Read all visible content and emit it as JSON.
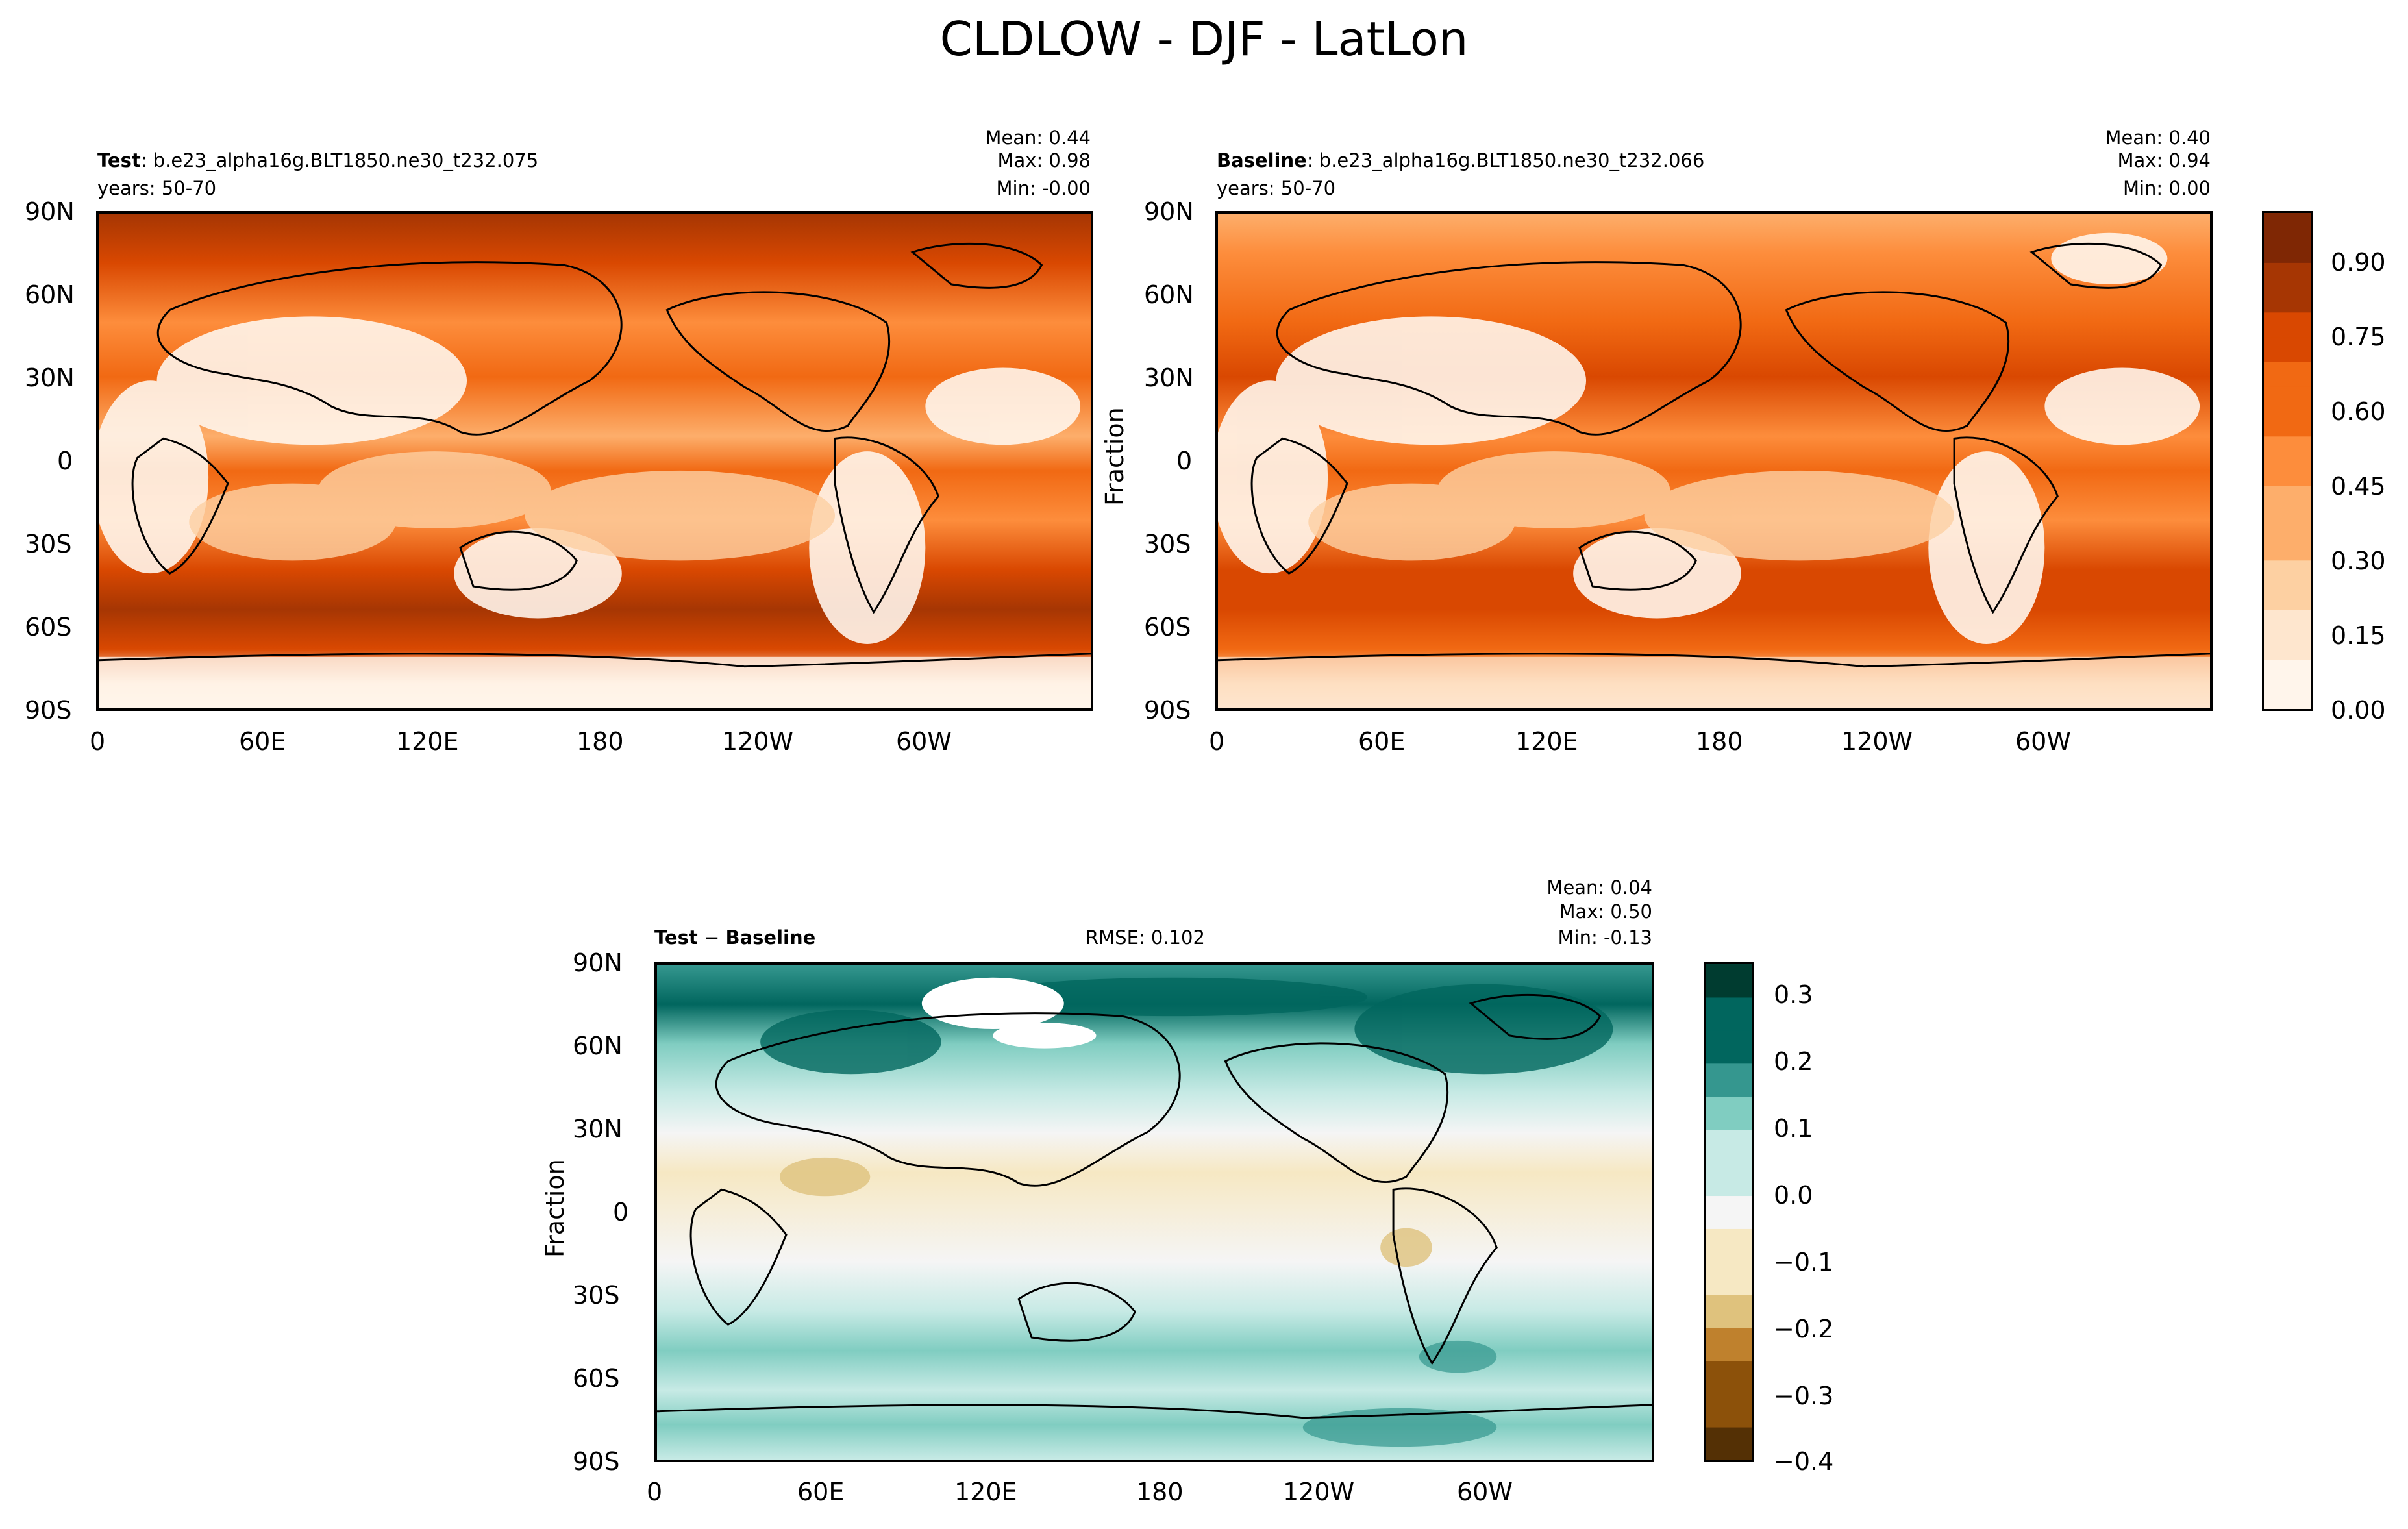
{
  "figure": {
    "title": "CLDLOW - DJF - LatLon"
  },
  "chart_data": [
    {
      "type": "heatmap",
      "panel": "test",
      "label_bold": "Test",
      "label_rest": ": b.e23_alpha16g.BLT1850.ne30_t232.075",
      "years": "years: 50-70",
      "stats": {
        "mean": "Mean:  0.44",
        "max": "Max:  0.98",
        "min": "Min: -0.00"
      },
      "x_ticks": [
        "0",
        "60E",
        "120E",
        "180",
        "120W",
        "60W"
      ],
      "y_ticks": [
        "90N",
        "60N",
        "30N",
        "0",
        "30S",
        "60S",
        "90S"
      ]
    },
    {
      "type": "heatmap",
      "panel": "baseline",
      "label_bold": "Baseline",
      "label_rest": ": b.e23_alpha16g.BLT1850.ne30_t232.066",
      "years": "years: 50-70",
      "stats": {
        "mean": "Mean:  0.40",
        "max": "Max:  0.94",
        "min": "Min:  0.00"
      },
      "x_ticks": [
        "0",
        "60E",
        "120E",
        "180",
        "120W",
        "60W"
      ],
      "y_ticks": [
        "90N",
        "60N",
        "30N",
        "0",
        "30S",
        "60S",
        "90S"
      ],
      "ylabel": "Fraction",
      "colorbar": {
        "ticks": [
          "0.90",
          "0.75",
          "0.60",
          "0.45",
          "0.30",
          "0.15",
          "0.00"
        ],
        "range": [
          0,
          1.0
        ]
      }
    },
    {
      "type": "heatmap",
      "panel": "difference",
      "label_bold": "Test",
      "label_mid": " − ",
      "label_bold2": "Baseline",
      "rmse": "RMSE: 0.102",
      "stats": {
        "mean": "Mean:  0.04",
        "max": "Max:  0.50",
        "min": "Min: -0.13"
      },
      "x_ticks": [
        "0",
        "60E",
        "120E",
        "180",
        "120W",
        "60W"
      ],
      "y_ticks": [
        "90N",
        "60N",
        "30N",
        "0",
        "30S",
        "60S",
        "90S"
      ],
      "ylabel": "Fraction",
      "colorbar": {
        "ticks": [
          "0.3",
          "0.2",
          "0.1",
          "0.0",
          "−0.1",
          "−0.2",
          "−0.3",
          "−0.4"
        ],
        "range": [
          -0.4,
          0.35
        ]
      }
    }
  ],
  "colors": {
    "oranges": [
      "#fff5eb",
      "#fee6ce",
      "#fdd0a2",
      "#fdae6b",
      "#fd8d3c",
      "#f16913",
      "#d94801",
      "#a63603",
      "#7f2704"
    ],
    "brbg": [
      "#543005",
      "#8c510a",
      "#bf812d",
      "#dfc27d",
      "#f6e8c3",
      "#f5f5f5",
      "#c7eae5",
      "#80cdc1",
      "#35978f",
      "#01665e",
      "#003c30"
    ]
  }
}
